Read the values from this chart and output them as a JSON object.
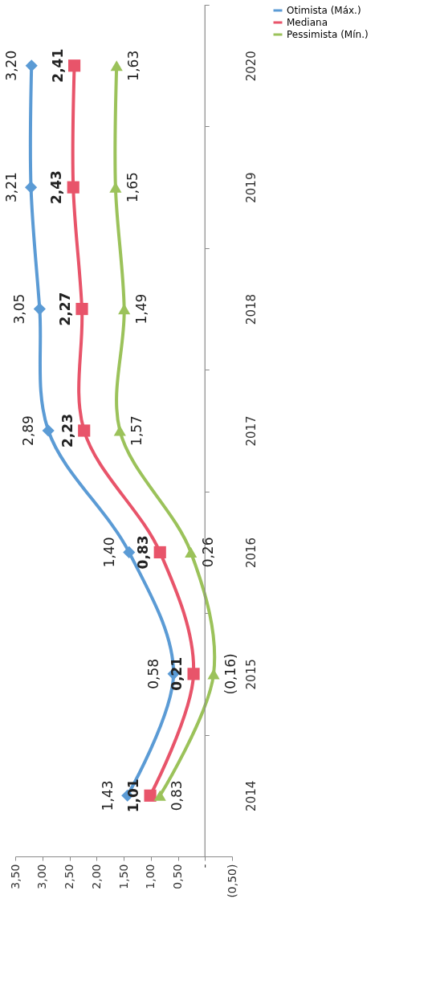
{
  "chart_data": {
    "type": "line",
    "orientation": "horizontal",
    "categories": [
      "2020",
      "2019",
      "2018",
      "2017",
      "2016",
      "2015",
      "2014"
    ],
    "series": [
      {
        "name": "Otimista (Máx.)",
        "color": "#5b9bd5",
        "marker": "diamond",
        "values": [
          3.2,
          3.21,
          3.05,
          2.89,
          1.4,
          0.58,
          1.43
        ],
        "value_labels": [
          "3,20",
          "3,21",
          "3,05",
          "2,89",
          "1,40",
          "0,58",
          "1,43"
        ]
      },
      {
        "name": "Mediana",
        "color": "#e8546a",
        "marker": "square",
        "values": [
          2.41,
          2.43,
          2.27,
          2.23,
          0.83,
          0.21,
          1.01
        ],
        "value_labels": [
          "2,41",
          "2,43",
          "2,27",
          "2,23",
          "0,83",
          "0,21",
          "1,01"
        ]
      },
      {
        "name": "Pessimista (Mín.)",
        "color": "#9bc25a",
        "marker": "triangle",
        "values": [
          1.63,
          1.65,
          1.49,
          1.57,
          0.26,
          -0.16,
          0.83
        ],
        "value_labels": [
          "1,63",
          "1,65",
          "1,49",
          "1,57",
          "0,26",
          "(0,16)",
          "0,83"
        ]
      }
    ],
    "xlim": [
      3.5,
      -0.5
    ],
    "xticks": [
      {
        "value": 3.5,
        "label": "3,50"
      },
      {
        "value": 3.0,
        "label": "3,00"
      },
      {
        "value": 2.5,
        "label": "2,50"
      },
      {
        "value": 2.0,
        "label": "2,00"
      },
      {
        "value": 1.5,
        "label": "1,50"
      },
      {
        "value": 1.0,
        "label": "1,00"
      },
      {
        "value": 0.5,
        "label": "0,50"
      },
      {
        "value": 0,
        "label": "-"
      },
      {
        "value": -0.5,
        "label": "(0,50)"
      }
    ],
    "ref_lines": [
      {
        "axis": "x",
        "value": 0,
        "color": "#888888"
      }
    ],
    "legend": "right",
    "grid": false,
    "line_style": "solid"
  }
}
